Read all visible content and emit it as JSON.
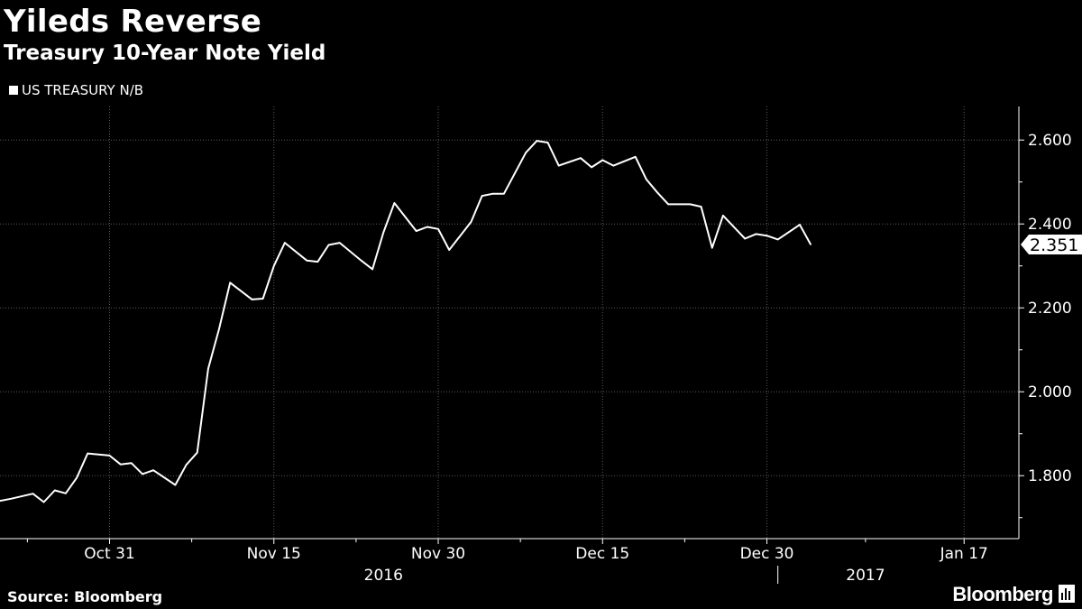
{
  "header": {
    "title": "Yileds Reverse",
    "subtitle": "Treasury 10-Year Note Yield"
  },
  "footer": {
    "source": "Source: Bloomberg",
    "brand": "Bloomberg",
    "brand_icon": "bar-chart-icon"
  },
  "colors": {
    "background": "#000000",
    "line": "#ffffff",
    "grid": "#5a5a5a"
  },
  "chart_data": {
    "type": "line",
    "title": "Yileds Reverse",
    "subtitle": "Treasury 10-Year Note Yield",
    "legend_position": "top-left",
    "grid": true,
    "ylim": [
      1.65,
      2.68
    ],
    "xlim": [
      "2016-10-21",
      "2017-01-22"
    ],
    "y_ticks": [
      1.8,
      2.0,
      2.2,
      2.4,
      2.6
    ],
    "y_tick_labels": [
      "1.800",
      "2.000",
      "2.200",
      "2.400",
      "2.600"
    ],
    "x_ticks": [
      {
        "date": "2016-10-31",
        "label": "Oct 31"
      },
      {
        "date": "2016-11-15",
        "label": "Nov 15"
      },
      {
        "date": "2016-11-30",
        "label": "Nov 30"
      },
      {
        "date": "2016-12-15",
        "label": "Dec 15"
      },
      {
        "date": "2016-12-30",
        "label": "Dec 30"
      },
      {
        "date": "2017-01-17",
        "label": "Jan 17"
      }
    ],
    "year_labels": [
      {
        "label": "2016",
        "date": "2016-11-25"
      },
      {
        "label": "2017",
        "date": "2017-01-08"
      }
    ],
    "year_divider": "2016-12-31",
    "last_value_label": "2.351",
    "series": [
      {
        "name": "US TREASURY N/B",
        "points": [
          [
            "2016-10-21",
            1.74
          ],
          [
            "2016-10-22",
            1.745
          ],
          [
            "2016-10-24",
            1.757
          ],
          [
            "2016-10-25",
            1.737
          ],
          [
            "2016-10-26",
            1.765
          ],
          [
            "2016-10-27",
            1.758
          ],
          [
            "2016-10-28",
            1.795
          ],
          [
            "2016-10-29",
            1.853
          ],
          [
            "2016-10-31",
            1.848
          ],
          [
            "2016-11-01",
            1.827
          ],
          [
            "2016-11-02",
            1.83
          ],
          [
            "2016-11-03",
            1.804
          ],
          [
            "2016-11-04",
            1.813
          ],
          [
            "2016-11-06",
            1.778
          ],
          [
            "2016-11-07",
            1.826
          ],
          [
            "2016-11-08",
            1.855
          ],
          [
            "2016-11-09",
            2.055
          ],
          [
            "2016-11-10",
            2.15
          ],
          [
            "2016-11-11",
            2.26
          ],
          [
            "2016-11-13",
            2.22
          ],
          [
            "2016-11-14",
            2.222
          ],
          [
            "2016-11-15",
            2.3
          ],
          [
            "2016-11-16",
            2.355
          ],
          [
            "2016-11-18",
            2.313
          ],
          [
            "2016-11-19",
            2.31
          ],
          [
            "2016-11-20",
            2.35
          ],
          [
            "2016-11-21",
            2.355
          ],
          [
            "2016-11-23",
            2.312
          ],
          [
            "2016-11-24",
            2.292
          ],
          [
            "2016-11-25",
            2.38
          ],
          [
            "2016-11-26",
            2.45
          ],
          [
            "2016-11-28",
            2.383
          ],
          [
            "2016-11-29",
            2.393
          ],
          [
            "2016-11-30",
            2.388
          ],
          [
            "2016-12-01",
            2.338
          ],
          [
            "2016-12-03",
            2.405
          ],
          [
            "2016-12-04",
            2.467
          ],
          [
            "2016-12-05",
            2.472
          ],
          [
            "2016-12-06",
            2.472
          ],
          [
            "2016-12-08",
            2.57
          ],
          [
            "2016-12-09",
            2.598
          ],
          [
            "2016-12-10",
            2.594
          ],
          [
            "2016-12-11",
            2.539
          ],
          [
            "2016-12-13",
            2.557
          ],
          [
            "2016-12-14",
            2.535
          ],
          [
            "2016-12-15",
            2.552
          ],
          [
            "2016-12-16",
            2.539
          ],
          [
            "2016-12-18",
            2.56
          ],
          [
            "2016-12-19",
            2.506
          ],
          [
            "2016-12-20",
            2.475
          ],
          [
            "2016-12-21",
            2.447
          ],
          [
            "2016-12-23",
            2.447
          ],
          [
            "2016-12-24",
            2.441
          ],
          [
            "2016-12-25",
            2.343
          ],
          [
            "2016-12-26",
            2.42
          ],
          [
            "2016-12-28",
            2.365
          ],
          [
            "2016-12-29",
            2.376
          ],
          [
            "2016-12-30",
            2.372
          ],
          [
            "2016-12-31",
            2.363
          ],
          [
            "2017-01-02",
            2.398
          ],
          [
            "2017-01-03",
            2.351
          ]
        ]
      }
    ]
  }
}
